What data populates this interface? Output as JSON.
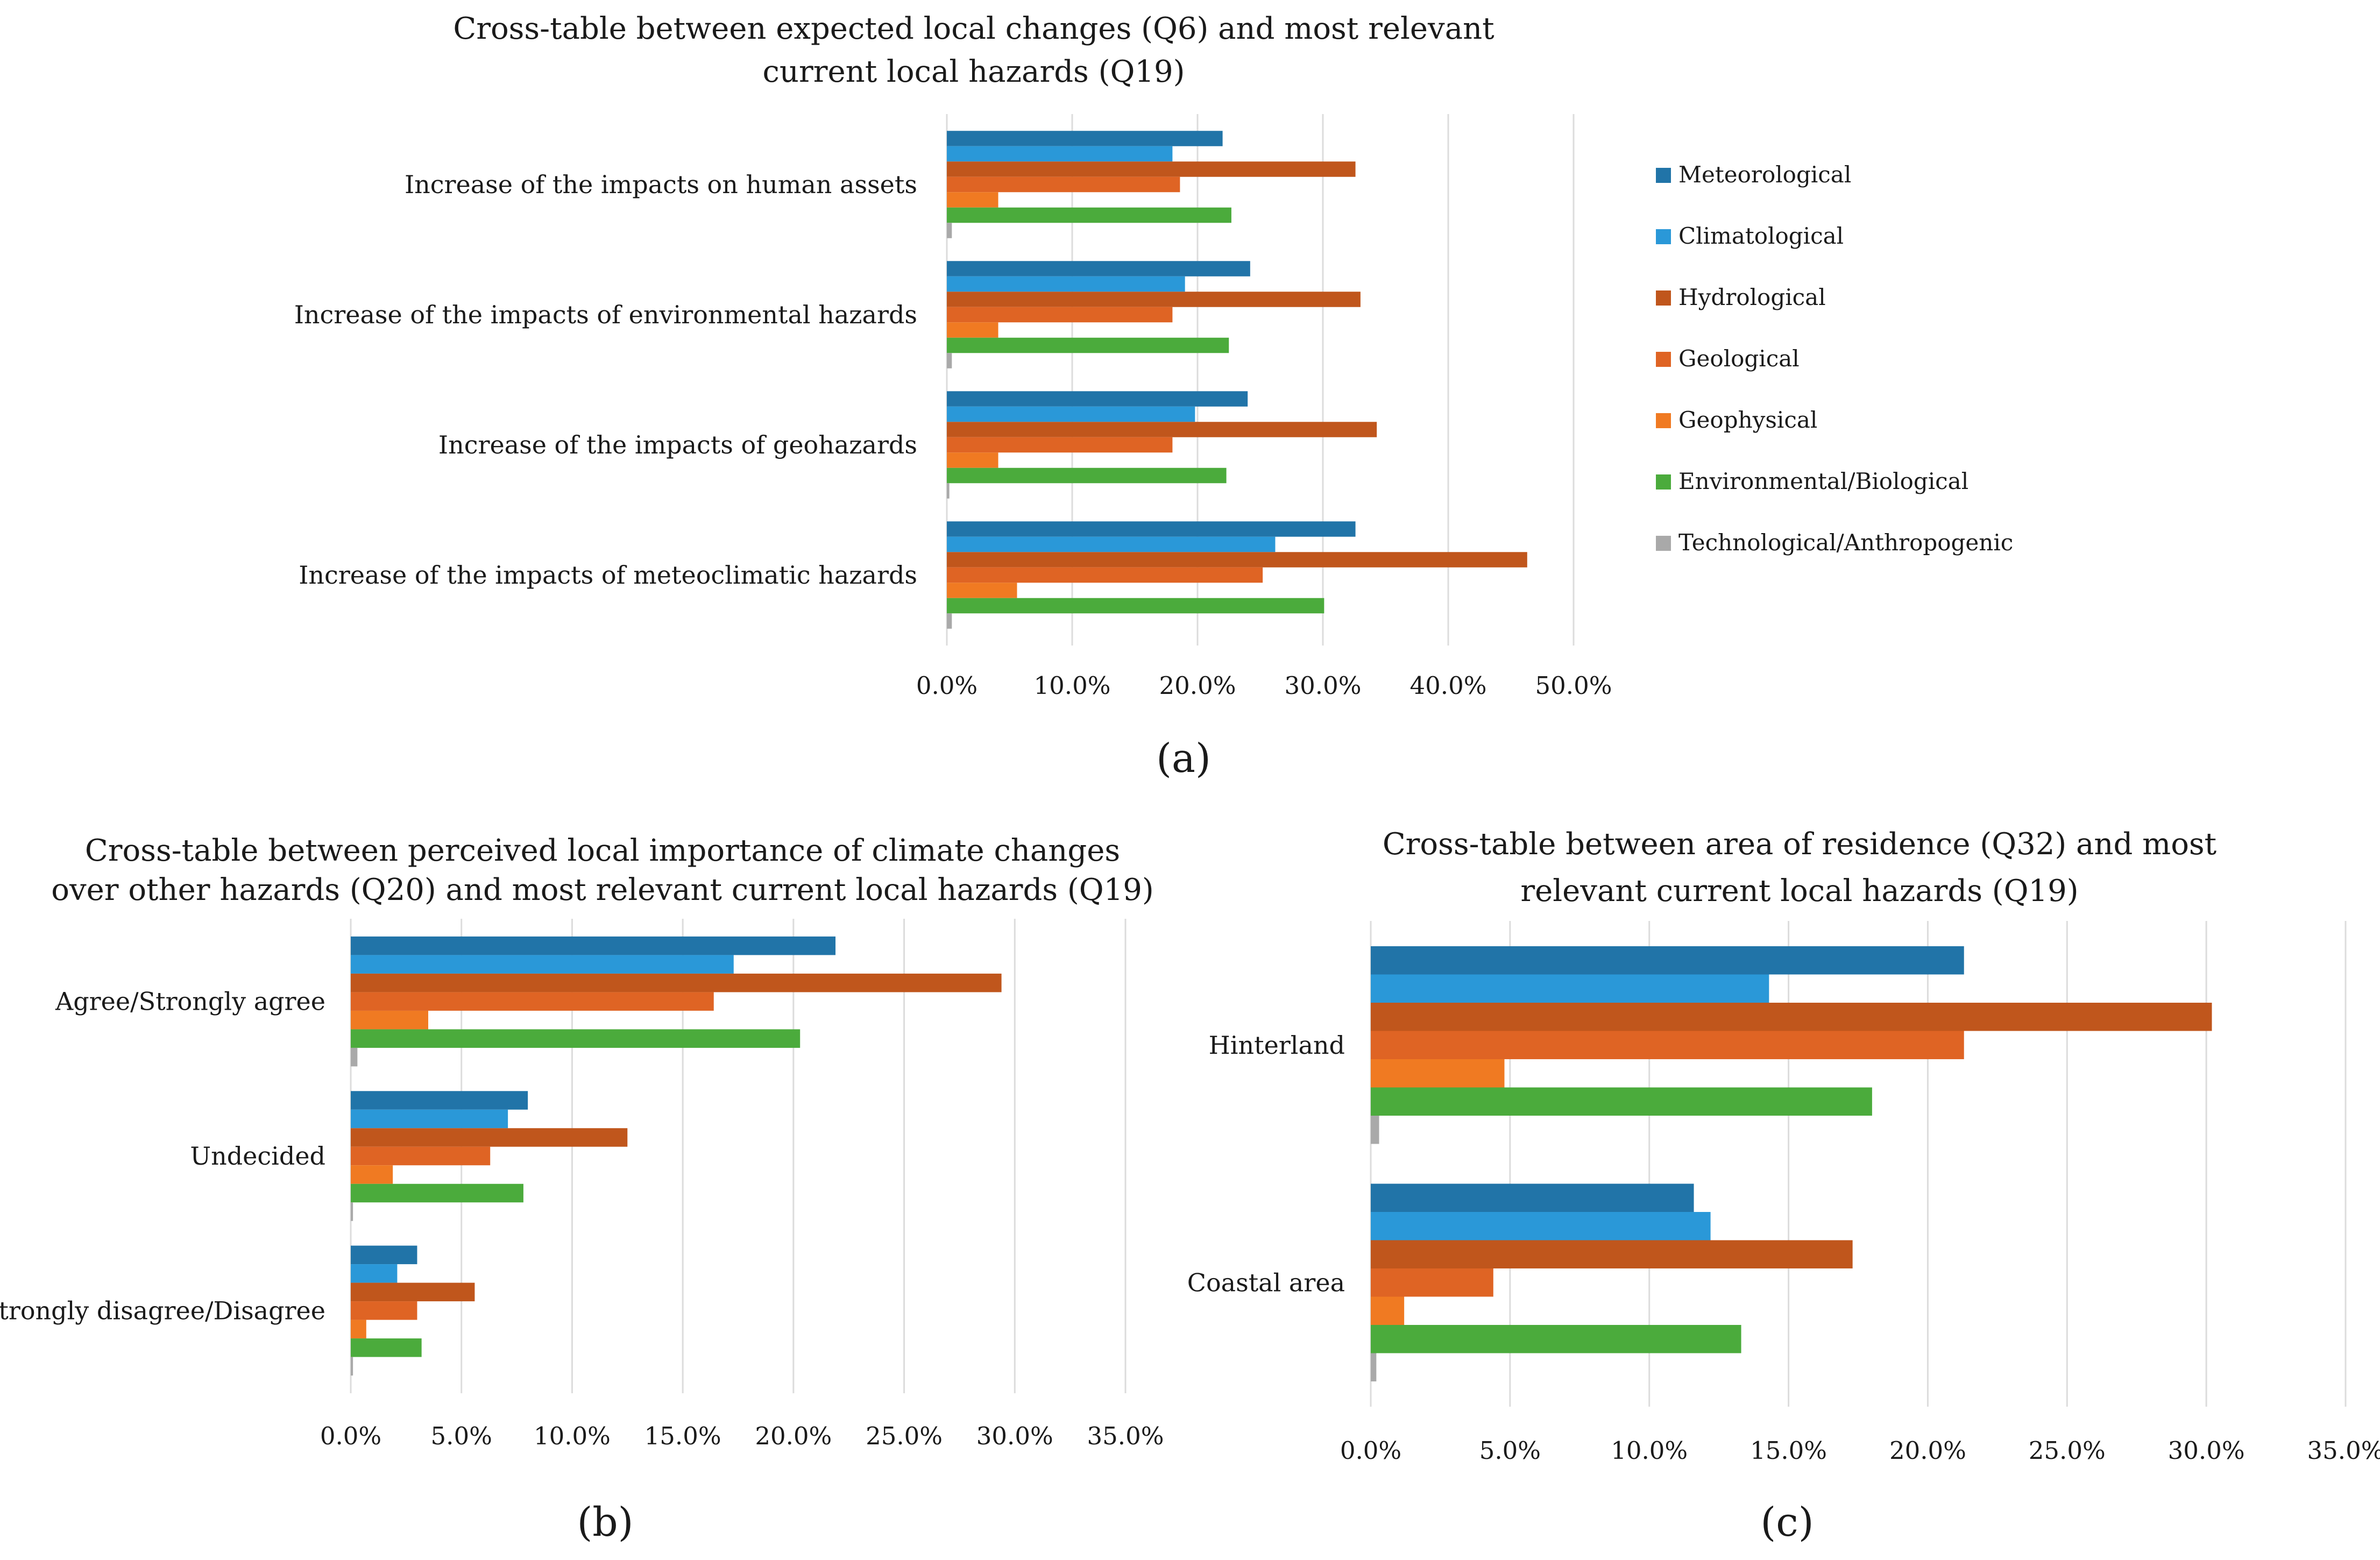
{
  "colors": {
    "Meteorological": "#2174a8",
    "Climatological": "#2a98d8",
    "Hydrological": "#c0561c",
    "Geological": "#df6424",
    "Geophysical": "#f07a22",
    "Environmental/Biological": "#4bab3c",
    "Technological/Anthropogenic": "#a9a9a9"
  },
  "chart_data": [
    {
      "panel": "a",
      "panel_label": "(a)",
      "type": "bar",
      "orientation": "horizontal",
      "title": [
        "Cross-table between expected local changes (Q6) and most relevant",
        "current local hazards (Q19)"
      ],
      "categories": [
        "Increase of the impacts on human assets",
        "Increase of the impacts of environmental hazards",
        "Increase of the impacts of geohazards",
        "Increase of the impacts of meteoclimatic hazards"
      ],
      "series": [
        {
          "name": "Meteorological",
          "values": [
            22.0,
            24.2,
            24.0,
            32.6
          ]
        },
        {
          "name": "Climatological",
          "values": [
            18.0,
            19.0,
            19.8,
            26.2
          ]
        },
        {
          "name": "Hydrological",
          "values": [
            32.6,
            33.0,
            34.3,
            46.3
          ]
        },
        {
          "name": "Geological",
          "values": [
            18.6,
            18.0,
            18.0,
            25.2
          ]
        },
        {
          "name": "Geophysical",
          "values": [
            4.1,
            4.1,
            4.1,
            5.6
          ]
        },
        {
          "name": "Environmental/Biological",
          "values": [
            22.7,
            22.5,
            22.3,
            30.1
          ]
        },
        {
          "name": "Technological/Anthropogenic",
          "values": [
            0.4,
            0.4,
            0.2,
            0.4
          ]
        }
      ],
      "xlim": [
        0,
        50
      ],
      "xticks": [
        "0.0%",
        "10.0%",
        "20.0%",
        "30.0%",
        "40.0%",
        "50.0%"
      ],
      "legend": [
        "Meteorological",
        "Climatological",
        "Hydrological",
        "Geological",
        "Geophysical",
        "Environmental/Biological",
        "Technological/Anthropogenic"
      ],
      "legend_position": "right",
      "xlabel": "",
      "ylabel": ""
    },
    {
      "panel": "b",
      "panel_label": "(b)",
      "type": "bar",
      "orientation": "horizontal",
      "title": [
        "Cross-table between perceived local importance of climate changes",
        "over other hazards (Q20) and most relevant current local hazards (Q19)"
      ],
      "categories": [
        "Agree/Strongly agree",
        "Undecided",
        "Strongly disagree/Disagree"
      ],
      "series": [
        {
          "name": "Meteorological",
          "values": [
            21.9,
            8.0,
            3.0
          ]
        },
        {
          "name": "Climatological",
          "values": [
            17.3,
            7.1,
            2.1
          ]
        },
        {
          "name": "Hydrological",
          "values": [
            29.4,
            12.5,
            5.6
          ]
        },
        {
          "name": "Geological",
          "values": [
            16.4,
            6.3,
            3.0
          ]
        },
        {
          "name": "Geophysical",
          "values": [
            3.5,
            1.9,
            0.7
          ]
        },
        {
          "name": "Environmental/Biological",
          "values": [
            20.3,
            7.8,
            3.2
          ]
        },
        {
          "name": "Technological/Anthropogenic",
          "values": [
            0.3,
            0.1,
            0.1
          ]
        }
      ],
      "xlim": [
        0,
        35
      ],
      "xticks": [
        "0.0%",
        "5.0%",
        "10.0%",
        "15.0%",
        "20.0%",
        "25.0%",
        "30.0%",
        "35.0%"
      ],
      "xlabel": "",
      "ylabel": ""
    },
    {
      "panel": "c",
      "panel_label": "(c)",
      "type": "bar",
      "orientation": "horizontal",
      "title": [
        "Cross-table between area of residence (Q32) and most",
        "relevant current local hazards (Q19)"
      ],
      "categories": [
        "Hinterland",
        "Coastal area"
      ],
      "series": [
        {
          "name": "Meteorological",
          "values": [
            21.3,
            11.6
          ]
        },
        {
          "name": "Climatological",
          "values": [
            14.3,
            12.2
          ]
        },
        {
          "name": "Hydrological",
          "values": [
            30.2,
            17.3
          ]
        },
        {
          "name": "Geological",
          "values": [
            21.3,
            4.4
          ]
        },
        {
          "name": "Geophysical",
          "values": [
            4.8,
            1.2
          ]
        },
        {
          "name": "Environmental/Biological",
          "values": [
            18.0,
            13.3
          ]
        },
        {
          "name": "Technological/Anthropogenic",
          "values": [
            0.3,
            0.2
          ]
        }
      ],
      "xlim": [
        0,
        35
      ],
      "xticks": [
        "0.0%",
        "5.0%",
        "10.0%",
        "15.0%",
        "20.0%",
        "25.0%",
        "30.0%",
        "35.0%"
      ],
      "xlabel": "",
      "ylabel": ""
    }
  ]
}
